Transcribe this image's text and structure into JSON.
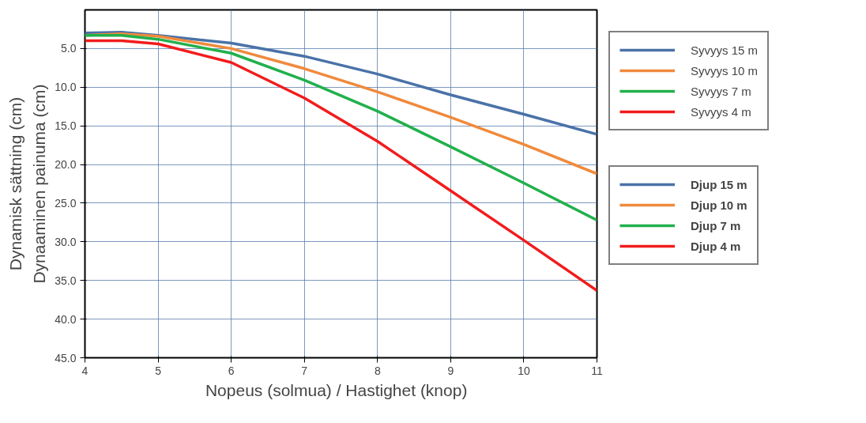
{
  "chart_data": {
    "type": "line",
    "xlabel": "Nopeus (solmua)  /  Hastighet (knop)",
    "ylabel": "Dynaaminen painuma (cm)",
    "x": [
      4,
      4.5,
      5,
      6,
      7,
      8,
      9,
      10,
      11
    ],
    "xlim": [
      4,
      11
    ],
    "xticks": [
      4,
      5,
      6,
      7,
      8,
      9,
      10,
      11
    ],
    "ylim": [
      45,
      0
    ],
    "yticks": [
      {
        "value": 5,
        "label": "5.0"
      },
      {
        "value": 10,
        "label": "10.0"
      },
      {
        "value": 15,
        "label": "15.0"
      },
      {
        "value": 20,
        "label": "20.0"
      },
      {
        "value": 25,
        "label": "25.0"
      },
      {
        "value": 30,
        "label": "30.0"
      },
      {
        "value": 35,
        "label": "35.0"
      },
      {
        "value": 40,
        "label": "40.0"
      },
      {
        "value": 45,
        "label": "45.0"
      }
    ],
    "series": [
      {
        "name": "Syvyys 15 m",
        "color": "#4a72a8",
        "values": [
          3.0,
          2.9,
          3.3,
          4.3,
          6.0,
          8.3,
          11.0,
          13.5,
          16.1
        ]
      },
      {
        "name": "Syvyys 10 m",
        "color": "#f08a3c",
        "values": [
          3.3,
          3.1,
          3.4,
          5.0,
          7.6,
          10.6,
          13.9,
          17.4,
          21.2
        ]
      },
      {
        "name": "Syvyys 7 m",
        "color": "#22b04c",
        "values": [
          3.3,
          3.3,
          3.8,
          5.6,
          9.1,
          13.1,
          17.7,
          22.4,
          27.2
        ]
      },
      {
        "name": "Syvyys 4 m",
        "color": "#f21c1c",
        "values": [
          4.0,
          4.0,
          4.4,
          6.8,
          11.4,
          17.0,
          23.4,
          29.8,
          36.3
        ]
      }
    ],
    "annotations": [
      "Dynamisk sättning (cm)",
      "Djup 15 m",
      "Djup 10 m",
      "Djup 7 m",
      "Djup 4 m"
    ],
    "grid": true,
    "legend": "right",
    "marker": "none",
    "line_style": "solid"
  }
}
